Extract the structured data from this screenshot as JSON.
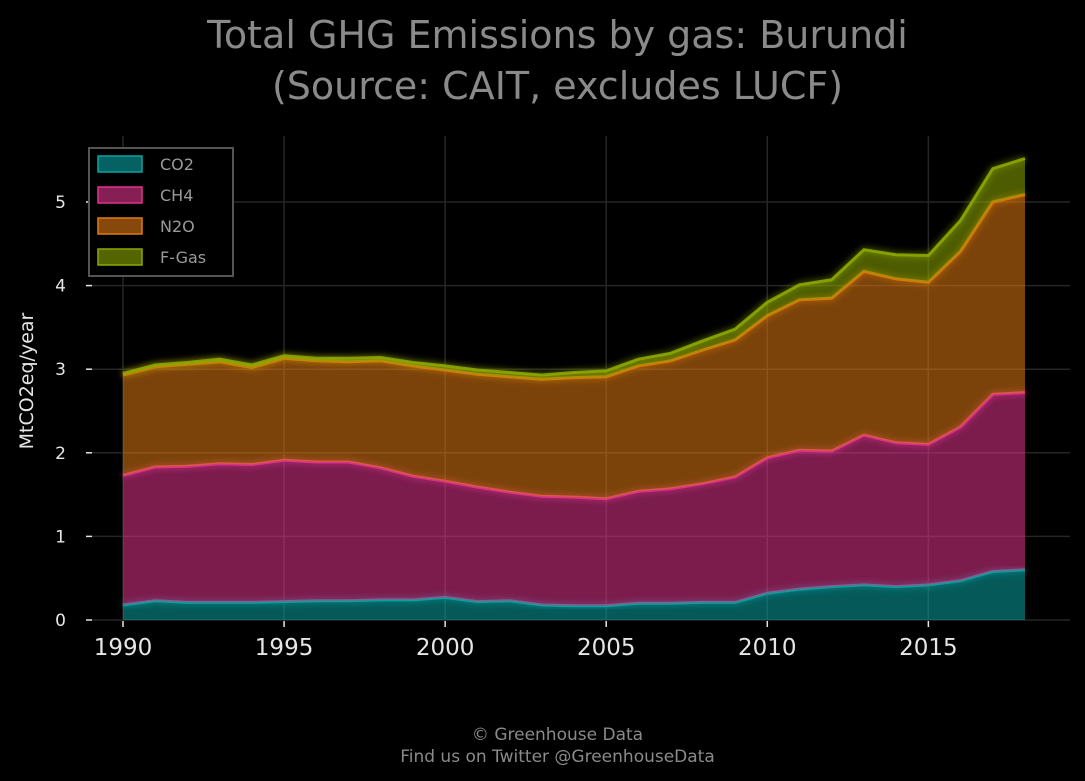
{
  "chart_data": {
    "type": "area",
    "stacked": true,
    "title": "Total GHG Emissions by gas: Burundi",
    "subtitle": "(Source: CAIT, excludes LUCF)",
    "xlabel": "",
    "ylabel": "MtCO2eq/year",
    "xlim": [
      1990,
      2018
    ],
    "ylim": [
      0,
      5.6
    ],
    "x_ticks": [
      1990,
      1995,
      2000,
      2005,
      2010,
      2015
    ],
    "y_ticks": [
      0,
      1,
      2,
      3,
      4,
      5
    ],
    "grid": true,
    "legend_position": "top-left",
    "x": [
      1990,
      1991,
      1992,
      1993,
      1994,
      1995,
      1996,
      1997,
      1998,
      1999,
      2000,
      2001,
      2002,
      2003,
      2004,
      2005,
      2006,
      2007,
      2008,
      2009,
      2010,
      2011,
      2012,
      2013,
      2014,
      2015,
      2016,
      2017,
      2018
    ],
    "series": [
      {
        "name": "CO2",
        "color": "#0aa3a3",
        "values": [
          0.18,
          0.23,
          0.21,
          0.21,
          0.21,
          0.22,
          0.23,
          0.23,
          0.24,
          0.24,
          0.27,
          0.22,
          0.23,
          0.18,
          0.17,
          0.17,
          0.2,
          0.2,
          0.21,
          0.21,
          0.32,
          0.37,
          0.4,
          0.42,
          0.4,
          0.42,
          0.47,
          0.58,
          0.6
        ]
      },
      {
        "name": "CH4",
        "color": "#e0338c",
        "values": [
          1.55,
          1.6,
          1.63,
          1.66,
          1.65,
          1.69,
          1.66,
          1.66,
          1.58,
          1.48,
          1.39,
          1.37,
          1.3,
          1.3,
          1.3,
          1.28,
          1.34,
          1.37,
          1.42,
          1.5,
          1.62,
          1.66,
          1.62,
          1.79,
          1.72,
          1.68,
          1.84,
          2.12,
          2.12
        ]
      },
      {
        "name": "N2O",
        "color": "#e07a12",
        "values": [
          1.2,
          1.2,
          1.22,
          1.22,
          1.16,
          1.22,
          1.21,
          1.2,
          1.28,
          1.32,
          1.33,
          1.35,
          1.38,
          1.4,
          1.43,
          1.46,
          1.5,
          1.53,
          1.6,
          1.64,
          1.7,
          1.8,
          1.83,
          1.96,
          1.96,
          1.94,
          2.1,
          2.3,
          2.37
        ]
      },
      {
        "name": "F-Gas",
        "color": "#8ca800",
        "values": [
          0.02,
          0.02,
          0.02,
          0.03,
          0.03,
          0.03,
          0.03,
          0.04,
          0.04,
          0.04,
          0.05,
          0.05,
          0.05,
          0.05,
          0.06,
          0.07,
          0.08,
          0.09,
          0.11,
          0.13,
          0.16,
          0.18,
          0.22,
          0.26,
          0.29,
          0.32,
          0.37,
          0.4,
          0.43
        ]
      }
    ]
  },
  "footer": {
    "line1": "© Greenhouse Data",
    "line2": "Find us on Twitter @GreenhouseData"
  }
}
